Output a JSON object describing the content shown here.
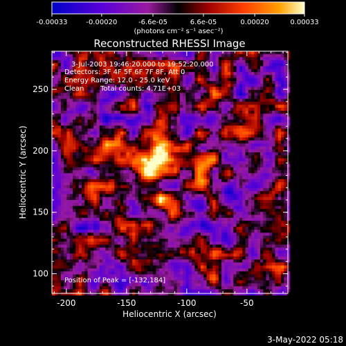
{
  "chart_data": {
    "type": "heatmap",
    "title": "Reconstructed RHESSI Image",
    "xlabel": "Heliocentric X (arcsec)",
    "ylabel": "Heliocentric Y (arcsec)",
    "xlim": [
      -212,
      -16
    ],
    "ylim": [
      84,
      281
    ],
    "x_ticks": [
      -200,
      -150,
      -100,
      -50
    ],
    "x_tick_labels": [
      "-200",
      "-150",
      "-100",
      "-50"
    ],
    "y_ticks": [
      100,
      150,
      200,
      250
    ],
    "y_tick_labels": [
      "100",
      "150",
      "200",
      "250"
    ],
    "colorbar": {
      "range": [
        -0.00033,
        0.00033
      ],
      "ticks": [
        -0.00033,
        -0.0002,
        -6.6e-05,
        6.6e-05,
        0.0002,
        0.00033
      ],
      "tick_labels": [
        "-0.00033",
        "-0.00020",
        "-6.6e-05",
        "6.6e-05",
        "0.00020",
        "0.00033"
      ],
      "unit_label": "(photons cm⁻² s⁻¹ asec⁻²)",
      "colors": [
        "#0000c8",
        "#5a00d8",
        "#9a1aa0",
        "#000000",
        "#a00000",
        "#ff4000",
        "#ffa000",
        "#ffffc8"
      ]
    },
    "annotations": [
      "3-Jul-2003 19:46:20.000 to 19:52:20.000",
      "Detectors: 3F 4F 5F 6F 7F 8F, Att 0",
      "Energy Range: 12.0 - 25.0 keV",
      "Clean",
      "Total counts: 4.71E+03",
      "Position of Peak = [-132,184]"
    ],
    "sources": [
      {
        "x": -132,
        "y": 184,
        "value": 0.00033
      },
      {
        "x": -128,
        "y": 196,
        "value": 0.00026
      },
      {
        "x": -110,
        "y": 192,
        "value": 0.0002
      },
      {
        "x": -88,
        "y": 185,
        "value": 0.00024
      },
      {
        "x": -118,
        "y": 158,
        "value": 0.00022
      },
      {
        "x": -148,
        "y": 168,
        "value": 0.00012
      },
      {
        "x": -175,
        "y": 205,
        "value": 0.0001
      },
      {
        "x": -200,
        "y": 255,
        "value": 0.00012
      },
      {
        "x": -35,
        "y": 95,
        "value": 0.00012
      },
      {
        "x": -60,
        "y": 165,
        "value": -0.00012
      }
    ],
    "grid": false
  },
  "footer": {
    "date": "3-May-2022 05:18"
  }
}
